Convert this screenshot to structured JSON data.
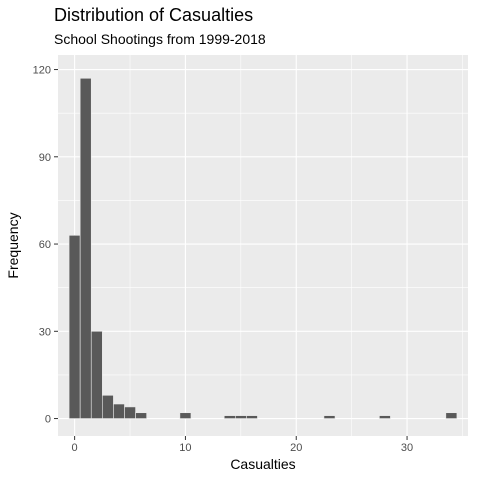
{
  "chart_data": {
    "type": "bar",
    "title": "Distribution of Casualties",
    "subtitle": "School Shootings from 1999-2018",
    "xlabel": "Casualties",
    "ylabel": "Frequency",
    "xlim": [
      -1.5,
      35.5
    ],
    "ylim": [
      -6,
      125
    ],
    "xticks": [
      0,
      10,
      20,
      30
    ],
    "yticks": [
      0,
      30,
      60,
      90,
      120
    ],
    "bins": [
      {
        "x": 0,
        "count": 63
      },
      {
        "x": 1,
        "count": 117
      },
      {
        "x": 2,
        "count": 30
      },
      {
        "x": 3,
        "count": 8
      },
      {
        "x": 4,
        "count": 5
      },
      {
        "x": 5,
        "count": 4
      },
      {
        "x": 6,
        "count": 2
      },
      {
        "x": 10,
        "count": 2
      },
      {
        "x": 14,
        "count": 1
      },
      {
        "x": 15,
        "count": 1
      },
      {
        "x": 16,
        "count": 1
      },
      {
        "x": 23,
        "count": 1
      },
      {
        "x": 28,
        "count": 1
      },
      {
        "x": 34,
        "count": 2
      }
    ],
    "bar_color": "#595959",
    "panel_background": "#ebebeb",
    "grid_color": "#ffffff"
  }
}
